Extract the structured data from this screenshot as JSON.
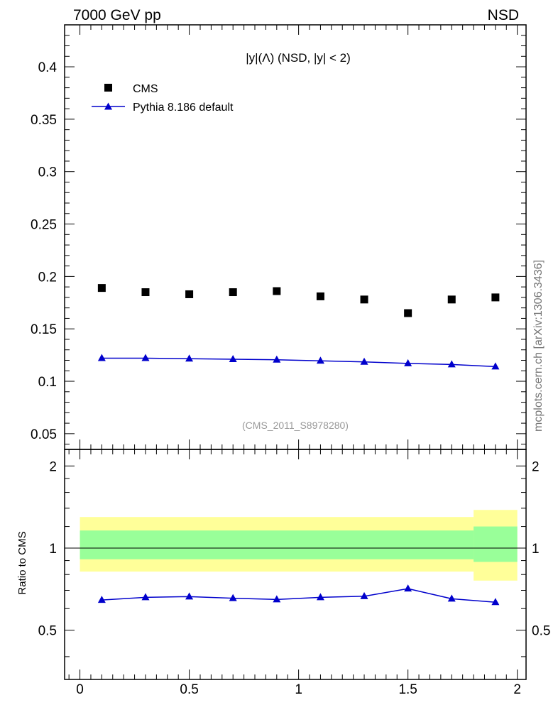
{
  "header": {
    "left": "7000 GeV pp",
    "right": "NSD"
  },
  "side_label": "mcplots.cern.ch [arXiv:1306.3436]",
  "chart_data": [
    {
      "type": "scatter",
      "title": "|y|(Λ) (NSD, |y| < 2)",
      "watermark": "(CMS_2011_S8978280)",
      "xlim": [
        -0.07,
        2.04
      ],
      "ylim": [
        0.035,
        0.44
      ],
      "grid": false,
      "legend_position": "top-left",
      "yticks": [
        {
          "v": 0.05,
          "label": "0.05"
        },
        {
          "v": 0.1,
          "label": "0.1"
        },
        {
          "v": 0.15,
          "label": "0.15"
        },
        {
          "v": 0.2,
          "label": "0.2"
        },
        {
          "v": 0.25,
          "label": "0.25"
        },
        {
          "v": 0.3,
          "label": "0.3"
        },
        {
          "v": 0.35,
          "label": "0.35"
        },
        {
          "v": 0.4,
          "label": "0.4"
        }
      ],
      "series": [
        {
          "name": "CMS",
          "marker": "square",
          "color": "#000000",
          "x": [
            0.1,
            0.3,
            0.5,
            0.7,
            0.9,
            1.1,
            1.3,
            1.5,
            1.7,
            1.9
          ],
          "y": [
            0.189,
            0.185,
            0.183,
            0.185,
            0.186,
            0.181,
            0.178,
            0.165,
            0.178,
            0.18
          ]
        },
        {
          "name": "Pythia 8.186 default",
          "marker": "triangle",
          "line": true,
          "color": "#0000cc",
          "x": [
            0.1,
            0.3,
            0.5,
            0.7,
            0.9,
            1.1,
            1.3,
            1.5,
            1.7,
            1.9
          ],
          "y": [
            0.122,
            0.122,
            0.1215,
            0.121,
            0.1205,
            0.1195,
            0.1185,
            0.117,
            0.116,
            0.114
          ]
        }
      ]
    },
    {
      "type": "line",
      "ylabel": "Ratio to CMS",
      "xlim": [
        -0.07,
        2.04
      ],
      "ylim": [
        0.33,
        2.3
      ],
      "xticks": [
        {
          "v": 0,
          "label": "0"
        },
        {
          "v": 0.5,
          "label": "0.5"
        },
        {
          "v": 1,
          "label": "1"
        },
        {
          "v": 1.5,
          "label": "1.5"
        },
        {
          "v": 2,
          "label": "2"
        }
      ],
      "yticks": [
        {
          "v": 0.5,
          "label": "0.5"
        },
        {
          "v": 1,
          "label": "1"
        },
        {
          "v": 2,
          "label": "2"
        }
      ],
      "bands": {
        "outer_color": "#ffff99",
        "inner_color": "#99ff99",
        "segments": [
          {
            "x0": 0.0,
            "x1": 1.8,
            "outer": [
              0.82,
              1.3
            ],
            "inner": [
              0.91,
              1.16
            ]
          },
          {
            "x0": 1.8,
            "x1": 2.0,
            "outer": [
              0.76,
              1.38
            ],
            "inner": [
              0.89,
              1.2
            ]
          }
        ]
      },
      "reference_line": 1,
      "series": [
        {
          "name": "Pythia 8.186 default",
          "marker": "triangle",
          "color": "#0000cc",
          "x": [
            0.1,
            0.3,
            0.5,
            0.7,
            0.9,
            1.1,
            1.3,
            1.5,
            1.7,
            1.9
          ],
          "y": [
            0.645,
            0.66,
            0.664,
            0.655,
            0.648,
            0.66,
            0.666,
            0.71,
            0.652,
            0.633
          ]
        }
      ]
    }
  ]
}
